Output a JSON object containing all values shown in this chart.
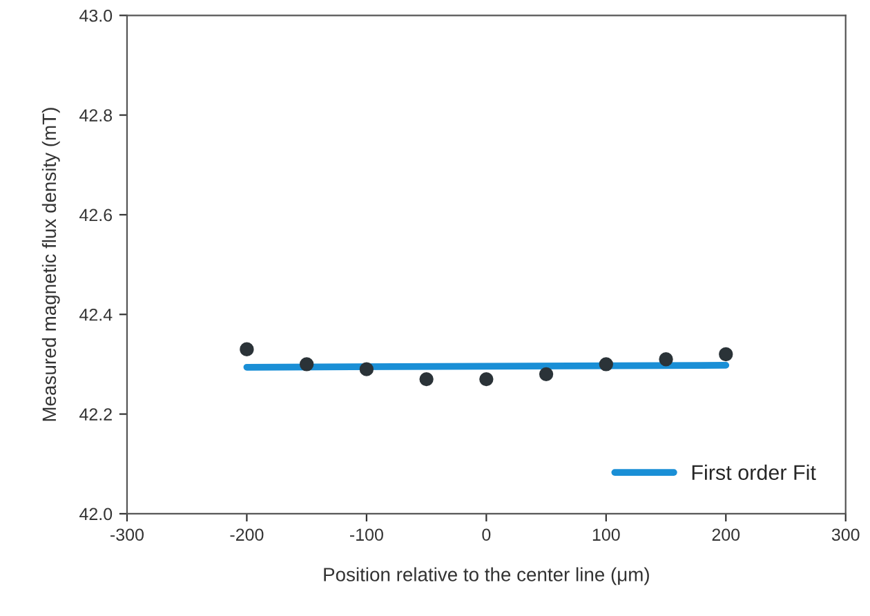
{
  "chart_data": {
    "type": "scatter",
    "xlabel": "Position relative to the center line (μm)",
    "ylabel": "Measured magnetic flux density (mT)",
    "xlim": [
      -300,
      300
    ],
    "xticks": [
      -300,
      -200,
      -100,
      0,
      100,
      200,
      300
    ],
    "ylim": [
      42.0,
      43.0
    ],
    "yticks": [
      {
        "value": 42.0,
        "label": "42.0"
      },
      42.2,
      42.4,
      42.6,
      42.8,
      {
        "value": 43.0,
        "label": "43.0"
      }
    ],
    "grid": false,
    "legend": "bottom right",
    "series": [
      {
        "marker": "circle",
        "color": "#2b3338",
        "x": [
          -200,
          -150,
          -100,
          -50,
          0,
          50,
          100,
          150,
          200
        ],
        "values": [
          42.33,
          42.3,
          42.29,
          42.27,
          42.27,
          42.28,
          42.3,
          42.31,
          42.32
        ]
      },
      {
        "type": "line",
        "name": "First order Fit",
        "color": "#1a8fd6",
        "line_style": "solid",
        "x": [
          -200,
          200
        ],
        "values": [
          42.294,
          42.298
        ]
      }
    ]
  }
}
